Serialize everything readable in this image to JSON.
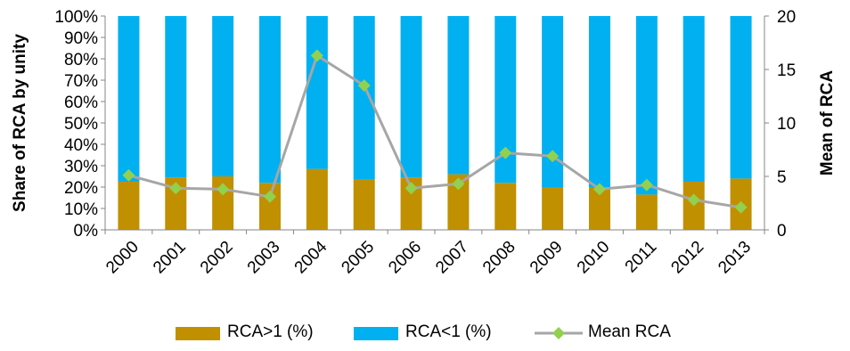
{
  "chart_data": {
    "type": "bar",
    "stacked": true,
    "categories": [
      "2000",
      "2001",
      "2002",
      "2003",
      "2004",
      "2005",
      "2006",
      "2007",
      "2008",
      "2009",
      "2010",
      "2011",
      "2012",
      "2013"
    ],
    "series": [
      {
        "name": "RCA>1 (%)",
        "kind": "bar",
        "axis": "left",
        "color": "#C09000",
        "values": [
          22.5,
          24.5,
          25,
          22,
          28.5,
          23.5,
          24.5,
          26,
          22,
          20,
          20,
          16.5,
          22.5,
          24
        ]
      },
      {
        "name": "RCA<1 (%)",
        "kind": "bar",
        "axis": "left",
        "color": "#00B0F0",
        "values": [
          77.5,
          75.5,
          75,
          78,
          71.5,
          76.5,
          75.5,
          74,
          78,
          80,
          80,
          83.5,
          77.5,
          76
        ]
      },
      {
        "name": "Mean RCA",
        "kind": "line",
        "axis": "right",
        "color": "#A6A6A6",
        "marker_color": "#92D050",
        "values": [
          5.1,
          3.9,
          3.8,
          3.1,
          16.3,
          13.5,
          3.9,
          4.3,
          7.2,
          6.9,
          3.8,
          4.2,
          2.8,
          2.1
        ]
      }
    ],
    "ylabel": "Share of RCA by unity",
    "y2label": "Mean of RCA",
    "ylim": [
      0,
      100
    ],
    "y2lim": [
      0,
      20
    ],
    "yticks": [
      "0%",
      "10%",
      "20%",
      "30%",
      "40%",
      "50%",
      "60%",
      "70%",
      "80%",
      "90%",
      "100%"
    ],
    "y2ticks": [
      "0",
      "5",
      "10",
      "15",
      "20"
    ],
    "grid": false,
    "legend_position": "bottom"
  }
}
